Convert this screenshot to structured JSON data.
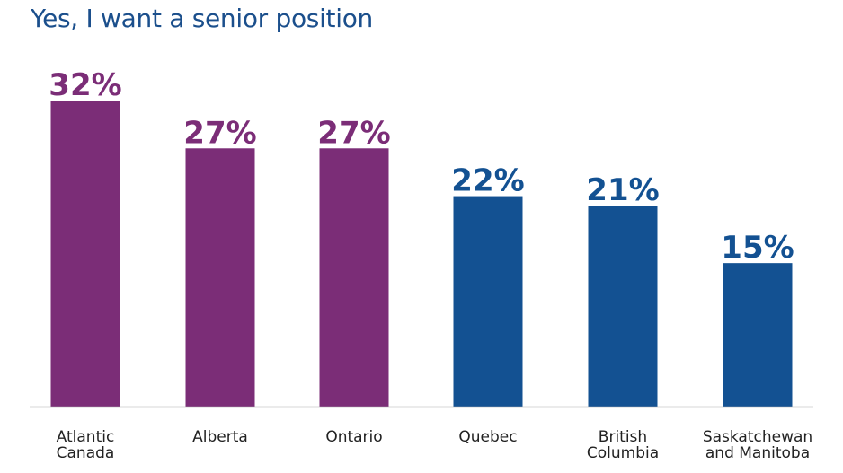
{
  "chart_data": {
    "type": "bar",
    "title": "Yes, I want a senior position",
    "categories": [
      [
        "Atlantic",
        "Canada"
      ],
      [
        "Alberta"
      ],
      [
        "Ontario"
      ],
      [
        "Quebec"
      ],
      [
        "British",
        "Columbia"
      ],
      [
        "Saskatchewan",
        "and Manitoba"
      ]
    ],
    "values": [
      32,
      27,
      27,
      22,
      21,
      15
    ],
    "value_labels": [
      "32%",
      "27%",
      "27%",
      "22%",
      "21%",
      "15%"
    ],
    "bar_colors": [
      "#7b2d77",
      "#7b2d77",
      "#7b2d77",
      "#135192",
      "#135192",
      "#135192"
    ],
    "ylim": [
      0,
      32
    ],
    "grid": false,
    "legend": "none"
  },
  "colors": {
    "title": "#1b4f8c",
    "axis": "#b0b0b0"
  }
}
